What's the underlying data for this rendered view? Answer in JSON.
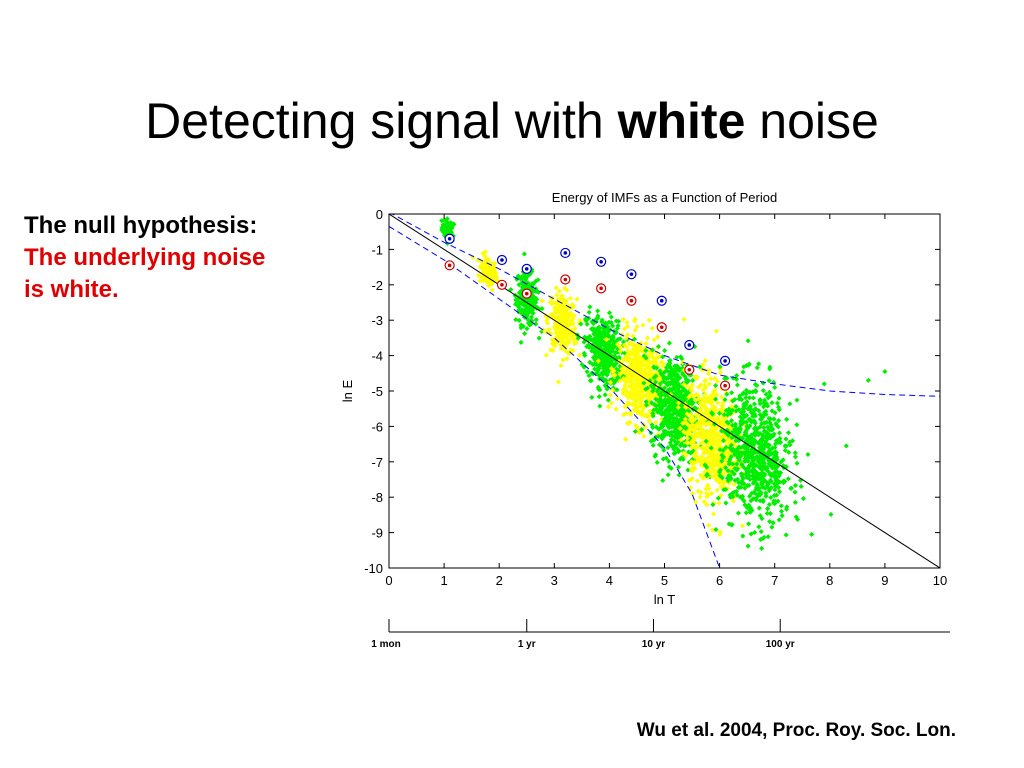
{
  "slide": {
    "title_prefix": "Detecting signal with ",
    "title_bold": "white",
    "title_suffix": " noise",
    "hypothesis_label": "The null hypothesis:",
    "hypothesis_line1": "The underlying noise",
    "hypothesis_line2": "is white.",
    "citation": "Wu et al. 2004, Proc. Roy. Soc. Lon."
  },
  "chart_data": {
    "type": "scatter",
    "title": "Energy of IMFs as a Function of Period",
    "xlabel": "ln T",
    "ylabel": "ln E",
    "xlim": [
      0,
      10
    ],
    "ylim": [
      -10,
      0
    ],
    "xticks": [
      "0",
      "1",
      "2",
      "3",
      "4",
      "5",
      "6",
      "7",
      "8",
      "9",
      "10"
    ],
    "yticks": [
      "0",
      "-1",
      "-2",
      "-3",
      "-4",
      "-5",
      "-6",
      "-7",
      "-8",
      "-9",
      "-10"
    ],
    "grid": false,
    "period_scale": [
      {
        "label": "1 mon",
        "lnT": 0
      },
      {
        "label": "1 yr",
        "lnT": 2.5
      },
      {
        "label": "10 yr",
        "lnT": 4.8
      },
      {
        "label": "100 yr",
        "lnT": 7.1
      }
    ],
    "theory_line": {
      "x": [
        0,
        10
      ],
      "y": [
        0,
        -10
      ],
      "color": "#000000"
    },
    "spread_upper": {
      "x": [
        0,
        1,
        2,
        3,
        4,
        5,
        6,
        7,
        8,
        9,
        10
      ],
      "y": [
        0.05,
        -0.8,
        -1.55,
        -2.4,
        -3.25,
        -4.0,
        -4.55,
        -4.8,
        -5.0,
        -5.1,
        -5.15
      ],
      "color": "#0000ff"
    },
    "spread_lower": {
      "x": [
        0,
        1,
        2,
        3,
        4,
        5,
        5.5,
        6
      ],
      "y": [
        -0.35,
        -1.3,
        -2.4,
        -3.5,
        -4.9,
        -6.6,
        -7.9,
        -10
      ],
      "color": "#0000ff"
    },
    "clusters": [
      {
        "color": "#00ee00",
        "mean_x": 1.08,
        "mean_y": -0.45,
        "sd_x": 0.06,
        "sd_y": 0.15,
        "n": 60
      },
      {
        "color": "#ffff00",
        "mean_x": 1.8,
        "mean_y": -1.65,
        "sd_x": 0.08,
        "sd_y": 0.22,
        "n": 120
      },
      {
        "color": "#00ee00",
        "mean_x": 2.5,
        "mean_y": -2.4,
        "sd_x": 0.1,
        "sd_y": 0.38,
        "n": 220
      },
      {
        "color": "#ffff00",
        "mean_x": 3.15,
        "mean_y": -3.1,
        "sd_x": 0.13,
        "sd_y": 0.42,
        "n": 280
      },
      {
        "color": "#00ee00",
        "mean_x": 3.9,
        "mean_y": -3.9,
        "sd_x": 0.16,
        "sd_y": 0.5,
        "n": 380
      },
      {
        "color": "#ffff00",
        "mean_x": 4.55,
        "mean_y": -4.7,
        "sd_x": 0.2,
        "sd_y": 0.62,
        "n": 480
      },
      {
        "color": "#00ee00",
        "mean_x": 5.2,
        "mean_y": -5.5,
        "sd_x": 0.22,
        "sd_y": 0.72,
        "n": 560
      },
      {
        "color": "#ffff00",
        "mean_x": 5.85,
        "mean_y": -6.3,
        "sd_x": 0.25,
        "sd_y": 0.85,
        "n": 600
      },
      {
        "color": "#00ee00",
        "mean_x": 6.65,
        "mean_y": -6.8,
        "sd_x": 0.32,
        "sd_y": 0.95,
        "n": 750
      }
    ],
    "blue_markers": {
      "color": "#0000cc",
      "points": [
        [
          1.1,
          -0.7
        ],
        [
          2.05,
          -1.3
        ],
        [
          2.5,
          -1.55
        ],
        [
          3.2,
          -1.1
        ],
        [
          3.85,
          -1.35
        ],
        [
          4.4,
          -1.7
        ],
        [
          4.95,
          -2.45
        ],
        [
          5.45,
          -3.7
        ],
        [
          6.1,
          -4.15
        ]
      ]
    },
    "red_markers": {
      "color": "#cc0000",
      "points": [
        [
          1.1,
          -1.45
        ],
        [
          2.05,
          -2.0
        ],
        [
          2.5,
          -2.25
        ],
        [
          3.2,
          -1.85
        ],
        [
          3.85,
          -2.1
        ],
        [
          4.4,
          -2.45
        ],
        [
          4.95,
          -3.2
        ],
        [
          5.45,
          -4.4
        ],
        [
          6.1,
          -4.85
        ]
      ]
    }
  }
}
